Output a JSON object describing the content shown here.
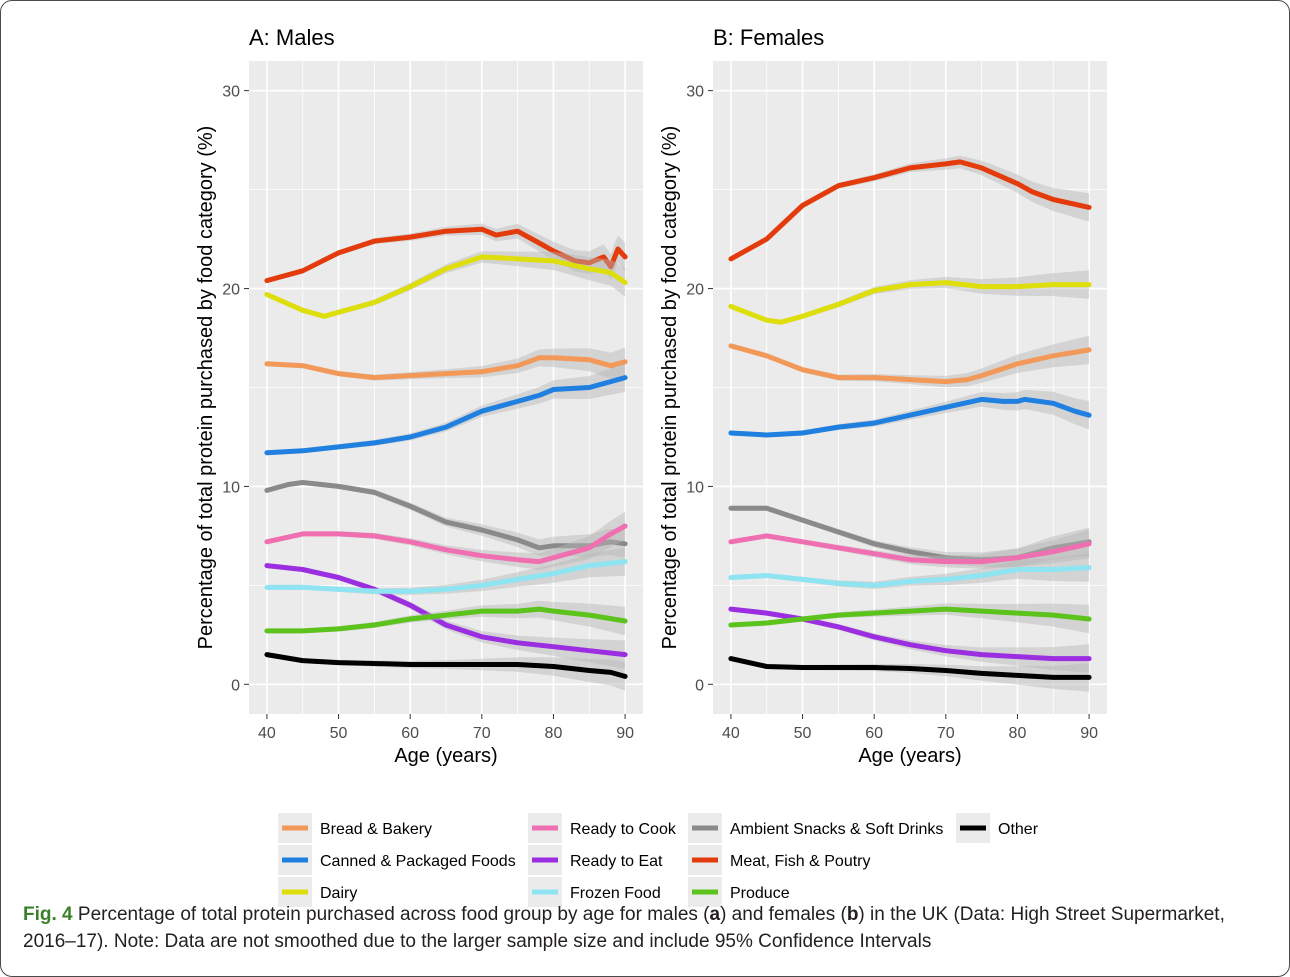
{
  "colors": {
    "Bread & Bakery": "#f2995a",
    "Canned & Packaged Foods": "#1f80e0",
    "Dairy": "#dede0a",
    "Ready to Cook": "#ef6fb0",
    "Ready to Eat": "#9a2ee0",
    "Frozen Food": "#8fe4f2",
    "Ambient Snacks & Soft Drinks": "#8a8a8a",
    "Meat, Fish & Poutry": "#e33b0b",
    "Produce": "#5cc21c",
    "Other": "#000000",
    "panel_bg": "#ebebeb",
    "caption_label": "#3c7f2c"
  },
  "chart_data": [
    {
      "type": "line",
      "title": "A: Males",
      "xlabel": "Age (years)",
      "ylabel": "Percentage of total protein purchased by food category (%)",
      "xlim": [
        40,
        90
      ],
      "ylim": [
        0,
        30
      ],
      "xticks": [
        40,
        50,
        60,
        70,
        80,
        90
      ],
      "yticks": [
        0,
        10,
        20,
        30
      ],
      "grid": true,
      "series": [
        {
          "name": "Meat, Fish & Poutry",
          "x": [
            40,
            45,
            50,
            55,
            60,
            65,
            70,
            72,
            75,
            78,
            80,
            83,
            85,
            87,
            88,
            89,
            90
          ],
          "y": [
            20.4,
            20.9,
            21.8,
            22.4,
            22.6,
            22.9,
            23.0,
            22.7,
            22.9,
            22.3,
            21.9,
            21.4,
            21.3,
            21.6,
            21.1,
            22.0,
            21.6
          ]
        },
        {
          "name": "Dairy",
          "x": [
            40,
            45,
            48,
            50,
            55,
            60,
            65,
            70,
            75,
            80,
            85,
            88,
            90
          ],
          "y": [
            19.7,
            18.9,
            18.6,
            18.8,
            19.3,
            20.1,
            21.0,
            21.6,
            21.5,
            21.4,
            21.0,
            20.8,
            20.3
          ]
        },
        {
          "name": "Bread & Bakery",
          "x": [
            40,
            45,
            50,
            55,
            60,
            65,
            70,
            75,
            78,
            80,
            85,
            88,
            90
          ],
          "y": [
            16.2,
            16.1,
            15.7,
            15.5,
            15.6,
            15.7,
            15.8,
            16.1,
            16.5,
            16.5,
            16.4,
            16.1,
            16.3
          ]
        },
        {
          "name": "Canned & Packaged Foods",
          "x": [
            40,
            45,
            50,
            55,
            60,
            65,
            70,
            75,
            78,
            80,
            85,
            88,
            90
          ],
          "y": [
            11.7,
            11.8,
            12.0,
            12.2,
            12.5,
            13.0,
            13.8,
            14.3,
            14.6,
            14.9,
            15.0,
            15.3,
            15.5
          ]
        },
        {
          "name": "Ambient Snacks & Soft Drinks",
          "x": [
            40,
            43,
            45,
            50,
            55,
            60,
            65,
            70,
            75,
            78,
            80,
            85,
            88,
            90
          ],
          "y": [
            9.8,
            10.1,
            10.2,
            10.0,
            9.7,
            9.0,
            8.2,
            7.8,
            7.3,
            6.9,
            7.0,
            7.0,
            7.2,
            7.1
          ]
        },
        {
          "name": "Ready to Cook",
          "x": [
            40,
            45,
            50,
            55,
            60,
            65,
            70,
            75,
            78,
            80,
            85,
            88,
            90
          ],
          "y": [
            7.2,
            7.6,
            7.6,
            7.5,
            7.2,
            6.8,
            6.5,
            6.3,
            6.2,
            6.4,
            6.9,
            7.6,
            8.0
          ]
        },
        {
          "name": "Ready to Eat",
          "x": [
            40,
            45,
            50,
            55,
            60,
            65,
            70,
            75,
            80,
            85,
            90
          ],
          "y": [
            6.0,
            5.8,
            5.4,
            4.8,
            4.0,
            3.0,
            2.4,
            2.1,
            1.9,
            1.7,
            1.5
          ]
        },
        {
          "name": "Frozen Food",
          "x": [
            40,
            45,
            50,
            55,
            60,
            65,
            70,
            75,
            80,
            85,
            90
          ],
          "y": [
            4.9,
            4.9,
            4.8,
            4.7,
            4.7,
            4.8,
            5.0,
            5.3,
            5.6,
            6.0,
            6.2
          ]
        },
        {
          "name": "Produce",
          "x": [
            40,
            45,
            50,
            55,
            60,
            65,
            70,
            75,
            78,
            80,
            85,
            90
          ],
          "y": [
            2.7,
            2.7,
            2.8,
            3.0,
            3.3,
            3.5,
            3.7,
            3.7,
            3.8,
            3.7,
            3.5,
            3.2
          ]
        },
        {
          "name": "Other",
          "x": [
            40,
            45,
            50,
            55,
            60,
            65,
            70,
            75,
            80,
            85,
            88,
            90
          ],
          "y": [
            1.5,
            1.2,
            1.1,
            1.05,
            1.0,
            1.0,
            1.0,
            1.0,
            0.9,
            0.7,
            0.6,
            0.4
          ]
        }
      ]
    },
    {
      "type": "line",
      "title": "B: Females",
      "xlabel": "Age (years)",
      "ylabel": "Percentage of total protein purchased by food category (%)",
      "xlim": [
        40,
        90
      ],
      "ylim": [
        0,
        30
      ],
      "xticks": [
        40,
        50,
        60,
        70,
        80,
        90
      ],
      "yticks": [
        0,
        10,
        20,
        30
      ],
      "grid": true,
      "series": [
        {
          "name": "Meat, Fish & Poutry",
          "x": [
            40,
            45,
            50,
            55,
            60,
            65,
            70,
            72,
            75,
            80,
            82,
            85,
            90
          ],
          "y": [
            21.5,
            22.5,
            24.2,
            25.2,
            25.6,
            26.1,
            26.3,
            26.4,
            26.1,
            25.3,
            24.9,
            24.5,
            24.1
          ]
        },
        {
          "name": "Dairy",
          "x": [
            40,
            45,
            47,
            50,
            55,
            60,
            65,
            70,
            75,
            80,
            85,
            90
          ],
          "y": [
            19.1,
            18.4,
            18.3,
            18.6,
            19.2,
            19.9,
            20.2,
            20.3,
            20.1,
            20.1,
            20.2,
            20.2
          ]
        },
        {
          "name": "Bread & Bakery",
          "x": [
            40,
            45,
            50,
            55,
            60,
            65,
            70,
            73,
            75,
            80,
            85,
            90
          ],
          "y": [
            17.1,
            16.6,
            15.9,
            15.5,
            15.5,
            15.4,
            15.3,
            15.4,
            15.6,
            16.2,
            16.6,
            16.9
          ]
        },
        {
          "name": "Canned & Packaged Foods",
          "x": [
            40,
            45,
            50,
            55,
            60,
            65,
            70,
            75,
            78,
            80,
            81,
            85,
            88,
            90
          ],
          "y": [
            12.7,
            12.6,
            12.7,
            13.0,
            13.2,
            13.6,
            14.0,
            14.4,
            14.3,
            14.3,
            14.4,
            14.2,
            13.8,
            13.6
          ]
        },
        {
          "name": "Ambient Snacks & Soft Drinks",
          "x": [
            40,
            45,
            50,
            55,
            60,
            65,
            70,
            75,
            80,
            85,
            90
          ],
          "y": [
            8.9,
            8.9,
            8.3,
            7.7,
            7.1,
            6.7,
            6.4,
            6.3,
            6.4,
            6.9,
            7.2
          ]
        },
        {
          "name": "Ready to Cook",
          "x": [
            40,
            45,
            50,
            55,
            60,
            65,
            70,
            75,
            80,
            85,
            90
          ],
          "y": [
            7.2,
            7.5,
            7.2,
            6.9,
            6.6,
            6.3,
            6.2,
            6.2,
            6.4,
            6.7,
            7.1
          ]
        },
        {
          "name": "Ready to Eat",
          "x": [
            40,
            45,
            50,
            55,
            60,
            65,
            70,
            75,
            80,
            85,
            90
          ],
          "y": [
            3.8,
            3.6,
            3.3,
            2.9,
            2.4,
            2.0,
            1.7,
            1.5,
            1.4,
            1.3,
            1.3
          ]
        },
        {
          "name": "Frozen Food",
          "x": [
            40,
            45,
            50,
            55,
            60,
            65,
            70,
            75,
            80,
            85,
            90
          ],
          "y": [
            5.4,
            5.5,
            5.3,
            5.1,
            5.0,
            5.2,
            5.3,
            5.5,
            5.8,
            5.8,
            5.9
          ]
        },
        {
          "name": "Produce",
          "x": [
            40,
            45,
            50,
            55,
            60,
            65,
            70,
            75,
            80,
            85,
            90
          ],
          "y": [
            3.0,
            3.1,
            3.3,
            3.5,
            3.6,
            3.7,
            3.8,
            3.7,
            3.6,
            3.5,
            3.3
          ]
        },
        {
          "name": "Other",
          "x": [
            40,
            45,
            50,
            55,
            60,
            65,
            70,
            75,
            80,
            85,
            90
          ],
          "y": [
            1.3,
            0.9,
            0.85,
            0.85,
            0.85,
            0.8,
            0.7,
            0.55,
            0.45,
            0.35,
            0.35
          ]
        }
      ]
    }
  ],
  "legend": {
    "placement": "bottom",
    "items": [
      "Bread & Bakery",
      "Canned & Packaged Foods",
      "Dairy",
      "Ready to Cook",
      "Ready to Eat",
      "Frozen Food",
      "Ambient Snacks & Soft Drinks",
      "Meat, Fish & Poutry",
      "Produce",
      "Other"
    ]
  },
  "caption": {
    "label": "Fig. 4",
    "text_1": " Percentage of total protein purchased across food group by age for males (",
    "a": "a",
    "text_2": ") and females (",
    "b": "b",
    "text_3": ") in the UK (Data: High Street Supermarket, 2016–17). Note: Data are not smoothed due to the larger sample size and include 95% Confidence Intervals"
  }
}
